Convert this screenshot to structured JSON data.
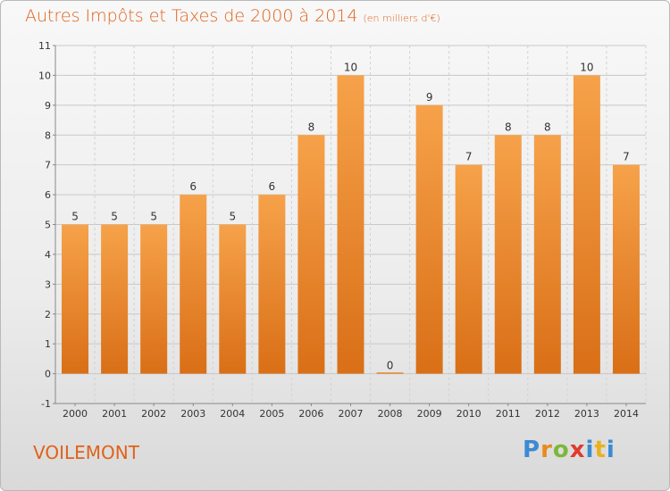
{
  "title": "Autres Impôts et Taxes de 2000 à 2014",
  "unit": "(en milliers d'€)",
  "commune": "VOILEMONT",
  "logo": "Proxiti",
  "colors": {
    "bar_light": "#f6a24a",
    "bar_dark": "#d96f17",
    "title": "#e0621a"
  },
  "chart_data": {
    "type": "bar",
    "categories": [
      "2000",
      "2001",
      "2002",
      "2003",
      "2004",
      "2005",
      "2006",
      "2007",
      "2008",
      "2009",
      "2010",
      "2011",
      "2012",
      "2013",
      "2014"
    ],
    "values": [
      5,
      5,
      5,
      6,
      5,
      6,
      8,
      10,
      0,
      9,
      7,
      8,
      8,
      10,
      7
    ],
    "ylim": [
      -1,
      11
    ],
    "yticks": [
      -1,
      0,
      1,
      2,
      3,
      4,
      5,
      6,
      7,
      8,
      9,
      10,
      11
    ],
    "grid": true
  }
}
